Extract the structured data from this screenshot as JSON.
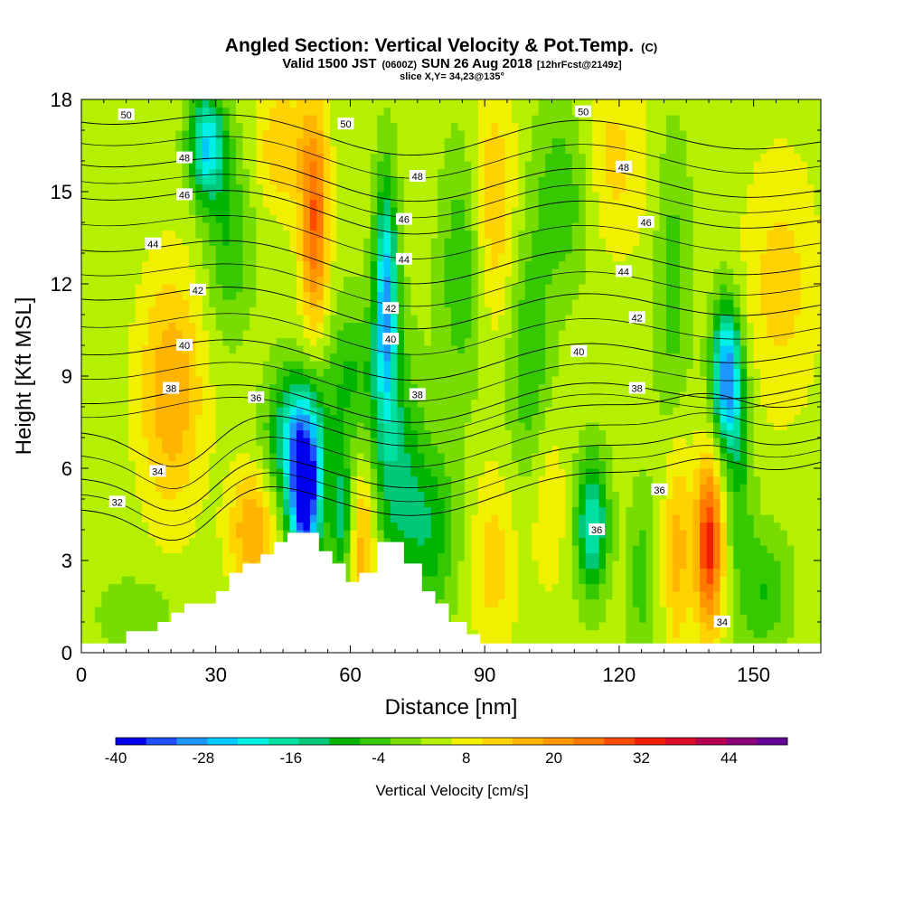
{
  "title": {
    "main": "Angled Section: Vertical Velocity & Pot.Temp.",
    "main_unit": "(C)",
    "valid_prefix": "Valid 1500 JST",
    "valid_z": "(0600Z)",
    "valid_date": "SUN 26 Aug 2018",
    "forecast": "[12hrFcst@2149z]",
    "slice": "slice X,Y= 34,23@135°"
  },
  "chart_data": {
    "type": "heatmap",
    "xlabel": "Distance [nm]",
    "ylabel": "Height [Kft MSL]",
    "xlim": [
      0,
      165
    ],
    "ylim": [
      0,
      18
    ],
    "x_ticks": [
      "0",
      "30",
      "60",
      "90",
      "120",
      "150"
    ],
    "x_tick_values": [
      0,
      30,
      60,
      90,
      120,
      150
    ],
    "y_ticks": [
      "0",
      "3",
      "6",
      "9",
      "12",
      "15",
      "18"
    ],
    "y_tick_values": [
      0,
      3,
      6,
      9,
      12,
      15,
      18
    ],
    "colorbar": {
      "label": "Vertical Velocity [cm/s]",
      "min": -40,
      "max": 52,
      "step": 4,
      "tick_labels": [
        "-40",
        "-28",
        "-16",
        "-4",
        "8",
        "20",
        "32",
        "44"
      ],
      "tick_values": [
        -40,
        -28,
        -16,
        -4,
        8,
        20,
        32,
        44
      ],
      "colors": [
        "#0000ee",
        "#1e50ff",
        "#1e96ff",
        "#00c8ff",
        "#00f0e6",
        "#00e0a0",
        "#00c878",
        "#00b400",
        "#36c800",
        "#78dc00",
        "#b4f000",
        "#f0f000",
        "#ffd200",
        "#ffb400",
        "#ff9600",
        "#ff7800",
        "#ff4b00",
        "#f01e00",
        "#dc0a28",
        "#b40050",
        "#8c0078",
        "#640096"
      ]
    },
    "terrain_profile": [
      {
        "x": 0,
        "h": 0.3
      },
      {
        "x": 10,
        "h": 0.3
      },
      {
        "x": 10,
        "h": 0.7
      },
      {
        "x": 17,
        "h": 0.7
      },
      {
        "x": 17,
        "h": 1.0
      },
      {
        "x": 20,
        "h": 1.0
      },
      {
        "x": 20,
        "h": 1.3
      },
      {
        "x": 23,
        "h": 1.3
      },
      {
        "x": 23,
        "h": 1.6
      },
      {
        "x": 30,
        "h": 1.6
      },
      {
        "x": 30,
        "h": 2.0
      },
      {
        "x": 33,
        "h": 2.0
      },
      {
        "x": 33,
        "h": 2.6
      },
      {
        "x": 36,
        "h": 2.6
      },
      {
        "x": 36,
        "h": 2.9
      },
      {
        "x": 40,
        "h": 2.9
      },
      {
        "x": 40,
        "h": 3.2
      },
      {
        "x": 43,
        "h": 3.2
      },
      {
        "x": 43,
        "h": 3.6
      },
      {
        "x": 46,
        "h": 3.6
      },
      {
        "x": 46,
        "h": 3.9
      },
      {
        "x": 53,
        "h": 3.9
      },
      {
        "x": 53,
        "h": 3.3
      },
      {
        "x": 56,
        "h": 3.3
      },
      {
        "x": 56,
        "h": 2.9
      },
      {
        "x": 59,
        "h": 2.9
      },
      {
        "x": 59,
        "h": 2.3
      },
      {
        "x": 62,
        "h": 2.3
      },
      {
        "x": 62,
        "h": 2.6
      },
      {
        "x": 66,
        "h": 2.6
      },
      {
        "x": 66,
        "h": 3.6
      },
      {
        "x": 72,
        "h": 3.6
      },
      {
        "x": 72,
        "h": 2.9
      },
      {
        "x": 76,
        "h": 2.9
      },
      {
        "x": 76,
        "h": 2.0
      },
      {
        "x": 79,
        "h": 2.0
      },
      {
        "x": 79,
        "h": 1.6
      },
      {
        "x": 82,
        "h": 1.6
      },
      {
        "x": 82,
        "h": 1.0
      },
      {
        "x": 86,
        "h": 1.0
      },
      {
        "x": 86,
        "h": 0.6
      },
      {
        "x": 89,
        "h": 0.6
      },
      {
        "x": 89,
        "h": 0.3
      },
      {
        "x": 165,
        "h": 0.3
      }
    ],
    "velocity_cells": [
      {
        "x": 50,
        "y": 5.0,
        "w": -40,
        "sx": 3.5,
        "sy": 2.3
      },
      {
        "x": 48,
        "y": 7.0,
        "w": -24,
        "sx": 6,
        "sy": 2.2
      },
      {
        "x": 58,
        "y": 4.5,
        "w": -16,
        "sx": 2.5,
        "sy": 2.2
      },
      {
        "x": 68,
        "y": 11.5,
        "w": -30,
        "sx": 2.6,
        "sy": 3.8
      },
      {
        "x": 70,
        "y": 6.0,
        "w": -14,
        "sx": 6,
        "sy": 4
      },
      {
        "x": 78,
        "y": 4.0,
        "w": -12,
        "sx": 6,
        "sy": 2.8
      },
      {
        "x": 28,
        "y": 16.5,
        "w": -26,
        "sx": 4,
        "sy": 1.8
      },
      {
        "x": 33,
        "y": 13.5,
        "w": -10,
        "sx": 5,
        "sy": 3
      },
      {
        "x": 60,
        "y": 9.0,
        "w": -10,
        "sx": 6,
        "sy": 2.5
      },
      {
        "x": 85,
        "y": 12.5,
        "w": -10,
        "sx": 5,
        "sy": 4
      },
      {
        "x": 100,
        "y": 9.5,
        "w": -10,
        "sx": 5,
        "sy": 4
      },
      {
        "x": 114,
        "y": 4.2,
        "w": -22,
        "sx": 3.5,
        "sy": 2.2
      },
      {
        "x": 108,
        "y": 15.0,
        "w": -10,
        "sx": 7,
        "sy": 3
      },
      {
        "x": 125,
        "y": 2.5,
        "w": -8,
        "sx": 3,
        "sy": 3
      },
      {
        "x": 132,
        "y": 12.0,
        "w": -8,
        "sx": 4,
        "sy": 5
      },
      {
        "x": 144,
        "y": 9.0,
        "w": -34,
        "sx": 3.2,
        "sy": 2.3
      },
      {
        "x": 147,
        "y": 6.0,
        "w": -10,
        "sx": 3,
        "sy": 3
      },
      {
        "x": 152,
        "y": 2.0,
        "w": -10,
        "sx": 6,
        "sy": 2
      },
      {
        "x": 12,
        "y": 1.2,
        "w": -6,
        "sx": 8,
        "sy": 1.2
      },
      {
        "x": 20,
        "y": 8.5,
        "w": 14,
        "sx": 7,
        "sy": 3.8
      },
      {
        "x": 38,
        "y": 4.0,
        "w": 14,
        "sx": 5,
        "sy": 2
      },
      {
        "x": 52,
        "y": 14.0,
        "w": 22,
        "sx": 3,
        "sy": 3.5
      },
      {
        "x": 45,
        "y": 16.5,
        "w": 10,
        "sx": 6,
        "sy": 2
      },
      {
        "x": 63,
        "y": 3.5,
        "w": 14,
        "sx": 3,
        "sy": 3
      },
      {
        "x": 140,
        "y": 3.5,
        "w": 28,
        "sx": 3,
        "sy": 2.8
      },
      {
        "x": 133,
        "y": 3.5,
        "w": 12,
        "sx": 3,
        "sy": 3.5
      },
      {
        "x": 92,
        "y": 14.5,
        "w": 10,
        "sx": 5,
        "sy": 4
      },
      {
        "x": 92,
        "y": 3.0,
        "w": 8,
        "sx": 5,
        "sy": 3
      },
      {
        "x": 118,
        "y": 16.0,
        "w": 8,
        "sx": 8,
        "sy": 3
      },
      {
        "x": 156,
        "y": 12.0,
        "w": 8,
        "sx": 8,
        "sy": 4
      },
      {
        "x": 104,
        "y": 5.0,
        "w": 6,
        "sx": 4,
        "sy": 3
      }
    ],
    "theta_contours": [
      {
        "label": "32",
        "level": 32,
        "y0": 4.8,
        "shift": 1.0,
        "lx": 8,
        "ly": 4.9
      },
      {
        "label": "34",
        "level": 34,
        "y0": 5.8,
        "shift": 0.8,
        "lx": 17,
        "ly": 5.9,
        "extra_labels": [
          {
            "x": 143,
            "y": 1.0
          }
        ]
      },
      {
        "label": "36",
        "level": 36,
        "y0": 7.3,
        "shift": 0.5,
        "lx": 39,
        "ly": 8.3,
        "extra_labels": [
          {
            "x": 115,
            "y": 4.0
          },
          {
            "x": 129,
            "y": 5.3
          }
        ]
      },
      {
        "label": "38",
        "level": 38,
        "y0": 8.2,
        "shift": 0.2,
        "lx": 20,
        "ly": 8.6,
        "extra_labels": [
          {
            "x": 75,
            "y": 8.4
          },
          {
            "x": 124,
            "y": 8.6
          }
        ]
      },
      {
        "label": "40",
        "level": 40,
        "y0": 9.8,
        "shift": -0.3,
        "lx": 23,
        "ly": 10.0,
        "extra_labels": [
          {
            "x": 69,
            "y": 10.2
          },
          {
            "x": 111,
            "y": 9.8
          }
        ]
      },
      {
        "label": "42",
        "level": 42,
        "y0": 11.6,
        "shift": -0.6,
        "lx": 26,
        "ly": 11.8,
        "extra_labels": [
          {
            "x": 69,
            "y": 11.2
          },
          {
            "x": 124,
            "y": 10.9
          }
        ]
      },
      {
        "label": "44",
        "level": 44,
        "y0": 13.2,
        "shift": -0.9,
        "lx": 16,
        "ly": 13.3,
        "extra_labels": [
          {
            "x": 72,
            "y": 12.8
          },
          {
            "x": 121,
            "y": 12.4
          }
        ]
      },
      {
        "label": "46",
        "level": 46,
        "y0": 14.9,
        "shift": -1.1,
        "lx": 23,
        "ly": 14.9,
        "extra_labels": [
          {
            "x": 72,
            "y": 14.1
          },
          {
            "x": 126,
            "y": 14.0
          }
        ]
      },
      {
        "label": "48",
        "level": 48,
        "y0": 16.0,
        "shift": -1.2,
        "lx": 23,
        "ly": 16.1,
        "extra_labels": [
          {
            "x": 75,
            "y": 15.5
          },
          {
            "x": 121,
            "y": 15.8
          }
        ]
      },
      {
        "label": "50",
        "level": 50,
        "y0": 17.4,
        "shift": -1.0,
        "lx": 10,
        "ly": 17.5,
        "extra_labels": [
          {
            "x": 59,
            "y": 17.2
          },
          {
            "x": 112,
            "y": 17.6
          }
        ]
      }
    ]
  }
}
